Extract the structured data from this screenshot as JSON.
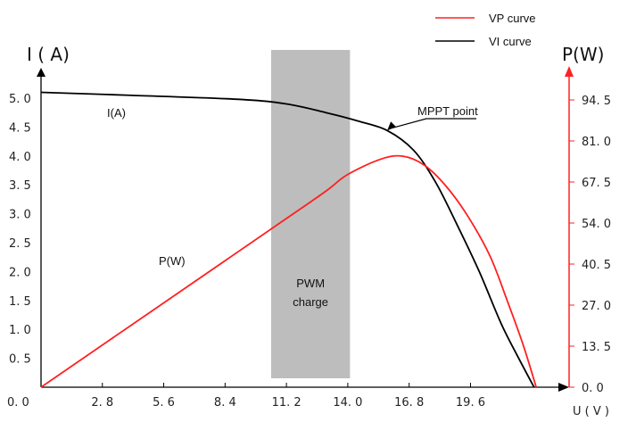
{
  "chart_data": {
    "type": "line",
    "left_axis_label": "I ( A)",
    "right_axis_label": "P(W)",
    "x_axis_label": "U ( V )",
    "x_ticks": [
      "0. 0",
      "2. 8",
      "5. 6",
      "8. 4",
      "11. 2",
      "14. 0",
      "16. 8",
      "19. 6"
    ],
    "x_tick_values": [
      0,
      2.8,
      5.6,
      8.4,
      11.2,
      14.0,
      16.8,
      19.6
    ],
    "xlim": [
      0,
      24.1
    ],
    "left_ticks": [
      "0. 5",
      "1. 0",
      "1. 5",
      "2. 0",
      "2. 5",
      "3. 0",
      "3. 5",
      "4. 0",
      "4. 5",
      "5. 0"
    ],
    "left_tick_values": [
      0.5,
      1.0,
      1.5,
      2.0,
      2.5,
      3.0,
      3.5,
      4.0,
      4.5,
      5.0
    ],
    "ylim_left": [
      0,
      5.0
    ],
    "right_ticks": [
      "0. 0",
      "13. 5",
      "27. 0",
      "40. 5",
      "54. 0",
      "67. 5",
      "81. 0",
      "94. 5"
    ],
    "right_tick_values": [
      0,
      13.5,
      27.0,
      40.5,
      54.0,
      67.5,
      81.0,
      94.5
    ],
    "ylim_right": [
      0,
      94.5
    ],
    "series": [
      {
        "name": "VP curve",
        "color": "#ff2020",
        "axis": "right",
        "points": [
          [
            0,
            0
          ],
          [
            11.2,
            55.5
          ],
          [
            13.0,
            64.5
          ],
          [
            14.0,
            70.0
          ],
          [
            15.5,
            75.0
          ],
          [
            16.5,
            76.0
          ],
          [
            17.5,
            73.0
          ],
          [
            18.5,
            66.0
          ],
          [
            19.5,
            56.0
          ],
          [
            20.5,
            43.0
          ],
          [
            21.3,
            28.0
          ],
          [
            22.0,
            14.0
          ],
          [
            22.6,
            0
          ]
        ]
      },
      {
        "name": "VI curve",
        "color": "#000000",
        "axis": "left",
        "points": [
          [
            0,
            5.1
          ],
          [
            4.0,
            5.05
          ],
          [
            9.0,
            4.98
          ],
          [
            11.2,
            4.9
          ],
          [
            13.0,
            4.75
          ],
          [
            14.5,
            4.6
          ],
          [
            15.8,
            4.44
          ],
          [
            17.0,
            4.1
          ],
          [
            18.0,
            3.55
          ],
          [
            19.0,
            2.8
          ],
          [
            20.0,
            2.0
          ],
          [
            21.0,
            1.1
          ],
          [
            21.8,
            0.5
          ],
          [
            22.5,
            0
          ]
        ]
      }
    ],
    "shaded_region": {
      "label_line1": "PWM",
      "label_line2": "charge",
      "x_start": 10.5,
      "x_end": 14.1,
      "color": "#bdbdbd"
    },
    "annotations": {
      "ia_label": "I(A)",
      "pw_label": "P(W)",
      "mppt_label": "MPPT point",
      "mppt_x": 15.8,
      "mppt_y_left": 4.44
    },
    "legend": {
      "placement": "top-right",
      "vp_label": "VP curve",
      "vi_label": "VI curve"
    },
    "colors": {
      "left_axis": "#000000",
      "right_axis": "#ff2020"
    }
  }
}
